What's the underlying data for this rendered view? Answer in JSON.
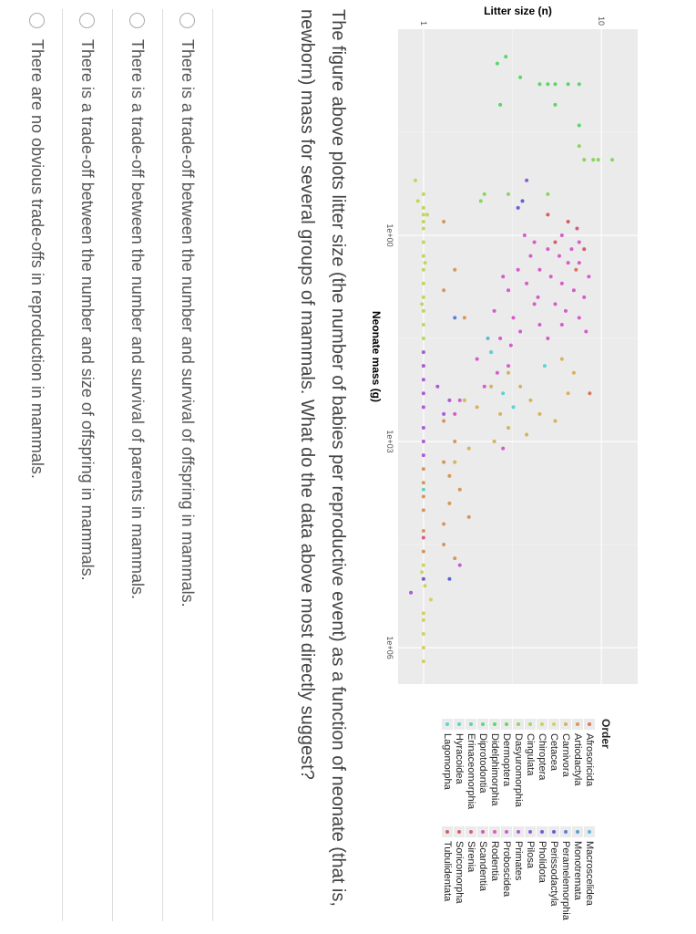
{
  "chart_data": {
    "type": "scatter",
    "xlabel": "Neonate mass (g)",
    "ylabel": "Litter size (n)",
    "x_scale": "log10",
    "y_scale": "log10",
    "x_ticks": [
      "1e+00",
      "1e+03",
      "1e+06"
    ],
    "x_tick_values_log10": [
      0,
      3,
      6
    ],
    "y_ticks": [
      "1",
      "10"
    ],
    "y_tick_values": [
      1,
      10
    ],
    "xlim_log10": [
      -3,
      6.53
    ],
    "ylim": [
      0.72,
      16
    ],
    "legend_title": "Order",
    "legend_position": "right",
    "orders": [
      "Afrosoricida",
      "Artiodactyla",
      "Carnivora",
      "Cetacea",
      "Chiroptera",
      "Cingulata",
      "Dasyuromorphia",
      "Dermoptera",
      "Didelphimorphia",
      "Diprotodontia",
      "Erinaceomorphia",
      "Hyracoidea",
      "Lagomorpha",
      "Macroscelidea",
      "Monotremata",
      "Peramelemorphia",
      "Perissodactyla",
      "Pholidota",
      "Pilosa",
      "Primates",
      "Proboscidea",
      "Rodentia",
      "Scandentia",
      "Sirenia",
      "Soricomorpha",
      "Tubulidentata"
    ],
    "points_format": "[log10 neonate mass g, litter size, order index]",
    "points": [
      [
        -2.6,
        2.9,
        8
      ],
      [
        -2.5,
        2.6,
        8
      ],
      [
        -2.2,
        5,
        8
      ],
      [
        -2.3,
        3.5,
        8
      ],
      [
        -2.2,
        4.5,
        8
      ],
      [
        -2.2,
        5.5,
        8
      ],
      [
        -2.2,
        6.5,
        8
      ],
      [
        -2.2,
        7.5,
        8
      ],
      [
        -1.9,
        2.7,
        8
      ],
      [
        -1.9,
        5.5,
        8
      ],
      [
        -1.6,
        7.5,
        8
      ],
      [
        -1.1,
        8,
        6
      ],
      [
        -1.1,
        9,
        6
      ],
      [
        -1.1,
        9.6,
        6
      ],
      [
        -1.1,
        11.5,
        6
      ],
      [
        -1.3,
        7.5,
        6
      ],
      [
        -0.6,
        3,
        6
      ],
      [
        -0.6,
        5,
        6
      ],
      [
        -0.6,
        2.2,
        6
      ],
      [
        -0.5,
        2.1,
        6
      ],
      [
        -0.6,
        1,
        4
      ],
      [
        -0.4,
        1,
        4
      ],
      [
        -0.3,
        1,
        4
      ],
      [
        -0.2,
        1,
        4
      ],
      [
        -0.1,
        1,
        4
      ],
      [
        -0.5,
        0.93,
        4
      ],
      [
        -0.3,
        1.05,
        4
      ],
      [
        -0.8,
        0.9,
        4
      ],
      [
        0.1,
        1,
        4
      ],
      [
        0.3,
        1,
        4
      ],
      [
        0.5,
        1,
        4
      ],
      [
        0.7,
        1,
        4
      ],
      [
        0.9,
        1,
        4
      ],
      [
        1.1,
        1,
        4
      ],
      [
        1.3,
        1,
        4
      ],
      [
        1.5,
        1,
        4
      ],
      [
        1.7,
        1,
        4
      ],
      [
        1.9,
        1,
        4
      ],
      [
        0.4,
        1.02,
        4
      ],
      [
        1.0,
        0.98,
        4
      ],
      [
        -0.5,
        3.6,
        16
      ],
      [
        -0.4,
        3.4,
        17
      ],
      [
        -0.8,
        3.8,
        18
      ],
      [
        -0.3,
        5,
        25
      ],
      [
        -0.2,
        6.5,
        25
      ],
      [
        -0.1,
        7.3,
        24
      ],
      [
        0.2,
        8,
        24
      ],
      [
        0.1,
        5.5,
        24
      ],
      [
        0.0,
        3.7,
        21
      ],
      [
        0.1,
        4.2,
        21
      ],
      [
        0.2,
        5,
        21
      ],
      [
        0.3,
        5.8,
        21
      ],
      [
        0.4,
        6.5,
        21
      ],
      [
        0.5,
        4.5,
        21
      ],
      [
        0.6,
        5.2,
        21
      ],
      [
        0.7,
        6,
        21
      ],
      [
        0.8,
        7,
        21
      ],
      [
        0.9,
        8,
        21
      ],
      [
        0.3,
        4,
        21
      ],
      [
        0.5,
        3.4,
        21
      ],
      [
        0.7,
        3.8,
        21
      ],
      [
        0.9,
        4.4,
        21
      ],
      [
        1.0,
        5.5,
        21
      ],
      [
        1.1,
        6.3,
        21
      ],
      [
        1.2,
        7.5,
        21
      ],
      [
        0.4,
        7.5,
        21
      ],
      [
        0.6,
        8.5,
        21
      ],
      [
        0.2,
        6.8,
        21
      ],
      [
        1.3,
        4.5,
        21
      ],
      [
        1.4,
        3.5,
        21
      ],
      [
        1.5,
        2.7,
        21
      ],
      [
        1.6,
        3.1,
        21
      ],
      [
        1.7,
        2.4,
        21
      ],
      [
        1.8,
        2,
        21
      ],
      [
        1.9,
        3,
        21
      ],
      [
        1.3,
        6,
        21
      ],
      [
        1.0,
        4.2,
        21
      ],
      [
        0.8,
        3,
        21
      ],
      [
        0.6,
        2.8,
        21
      ],
      [
        1.2,
        3.2,
        21
      ],
      [
        1.5,
        5,
        21
      ],
      [
        1.1,
        2.5,
        21
      ],
      [
        2.0,
        2.6,
        21
      ],
      [
        2.2,
        2.2,
        21
      ],
      [
        2.4,
        1.6,
        21
      ],
      [
        2.6,
        1.5,
        21
      ],
      [
        3.1,
        2.8,
        21
      ],
      [
        0.1,
        7.5,
        21
      ],
      [
        0.0,
        6,
        21
      ],
      [
        1.4,
        8.2,
        21
      ],
      [
        1.7,
        1,
        19
      ],
      [
        1.9,
        1,
        19
      ],
      [
        2.1,
        1,
        19
      ],
      [
        2.2,
        1.2,
        19
      ],
      [
        2.3,
        1,
        19
      ],
      [
        2.5,
        1,
        19
      ],
      [
        2.6,
        1.3,
        19
      ],
      [
        2.8,
        1,
        19
      ],
      [
        3.0,
        1,
        19
      ],
      [
        3.2,
        1,
        19
      ],
      [
        2.4,
        1.4,
        19
      ],
      [
        5.2,
        0.85,
        19
      ],
      [
        1.2,
        1.5,
        15
      ],
      [
        1.5,
        2.3,
        13
      ],
      [
        2.3,
        2.8,
        12
      ],
      [
        1.7,
        2.4,
        12
      ],
      [
        2.5,
        3.2,
        12
      ],
      [
        1.9,
        4.8,
        12
      ],
      [
        2.0,
        3,
        2
      ],
      [
        2.2,
        3.5,
        2
      ],
      [
        2.4,
        4,
        2
      ],
      [
        2.6,
        4.5,
        2
      ],
      [
        2.8,
        3,
        2
      ],
      [
        3.0,
        2.5,
        2
      ],
      [
        2.2,
        2.4,
        2
      ],
      [
        2.5,
        2,
        2
      ],
      [
        2.7,
        5.5,
        2
      ],
      [
        1.8,
        6,
        2
      ],
      [
        2.0,
        7,
        2
      ],
      [
        2.3,
        6.5,
        2
      ],
      [
        3.1,
        1.8,
        2
      ],
      [
        3.3,
        1.5,
        2
      ],
      [
        2.9,
        3.8,
        2
      ],
      [
        2.4,
        1.7,
        2
      ],
      [
        2.6,
        2.7,
        2
      ],
      [
        0.5,
        7.2,
        0
      ],
      [
        2.3,
        8.6,
        0
      ],
      [
        -0.2,
        1.3,
        1
      ],
      [
        0.5,
        1.5,
        1
      ],
      [
        0.8,
        1.3,
        1
      ],
      [
        1.2,
        1.7,
        1
      ],
      [
        2.7,
        1.3,
        1
      ],
      [
        3.0,
        1.5,
        1
      ],
      [
        3.3,
        1.3,
        1
      ],
      [
        3.5,
        1.4,
        1
      ],
      [
        3.7,
        1.6,
        1
      ],
      [
        3.9,
        1.4,
        1
      ],
      [
        4.2,
        1.3,
        1
      ],
      [
        4.5,
        1.3,
        1
      ],
      [
        4.7,
        1.5,
        1
      ],
      [
        3.6,
        1,
        1
      ],
      [
        3.8,
        1,
        1
      ],
      [
        4.0,
        1,
        1
      ],
      [
        4.3,
        1,
        1
      ],
      [
        4.6,
        1,
        1
      ],
      [
        3.4,
        1,
        1
      ],
      [
        4.1,
        1.8,
        1
      ],
      [
        4.8,
        1,
        3
      ],
      [
        5.0,
        1,
        3
      ],
      [
        5.3,
        1.1,
        3
      ],
      [
        5.6,
        1,
        3
      ],
      [
        5.8,
        1,
        3
      ],
      [
        6.0,
        1,
        3
      ],
      [
        6.2,
        1,
        3
      ],
      [
        5.5,
        1,
        3
      ],
      [
        4.9,
        0.98,
        3
      ],
      [
        5.1,
        1.02,
        3
      ],
      [
        4.8,
        1.6,
        20
      ],
      [
        5.0,
        1.4,
        16
      ],
      [
        3.7,
        1,
        11
      ],
      [
        4.4,
        1,
        23
      ],
      [
        5.0,
        1,
        17
      ]
    ]
  },
  "question": "The figure above plots litter size (the number of babies per reproductive event) as a function of neonate (that is, newborn) mass for several groups of mammals. What do the data above most directly suggest?",
  "options": [
    "There is a trade-off between the number and survival of offspring in mammals.",
    "There is a trade-off between the number and survival of parents in mammals.",
    "There is a trade-off between the number and size of offspring in mammals.",
    "There are no obvious trade-offs in reproduction in mammals."
  ]
}
